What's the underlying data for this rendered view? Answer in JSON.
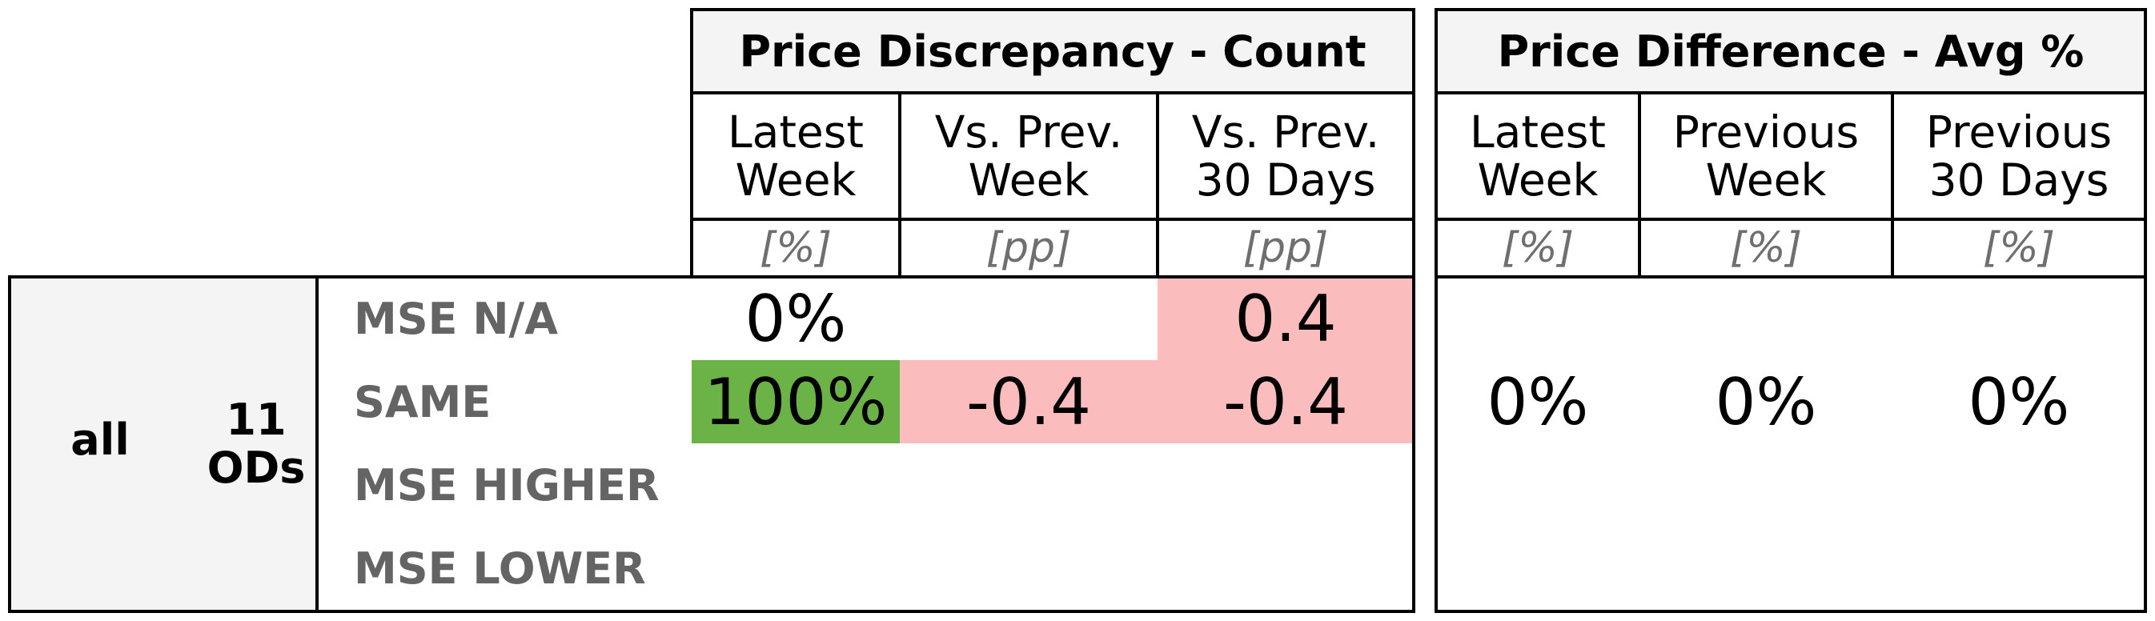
{
  "chart_data": {
    "type": "table",
    "groups": [
      {
        "title": "Price Discrepancy - Count",
        "columns": [
          {
            "label": "Latest\nWeek",
            "unit": "[%]"
          },
          {
            "label": "Vs. Prev.\nWeek",
            "unit": "[pp]"
          },
          {
            "label": "Vs. Prev.\n30 Days",
            "unit": "[pp]"
          }
        ]
      },
      {
        "title": "Price Difference - Avg %",
        "columns": [
          {
            "label": "Latest\nWeek",
            "unit": "[%]"
          },
          {
            "label": "Previous\nWeek",
            "unit": "[%]"
          },
          {
            "label": "Previous\n30 Days",
            "unit": "[%]"
          }
        ]
      }
    ],
    "segment": {
      "name": "all",
      "count_label": "11\nODs"
    },
    "rows": [
      {
        "label": "MSE N/A",
        "count": [
          "0%",
          "",
          "0.4"
        ]
      },
      {
        "label": "SAME",
        "count": [
          "100%",
          "-0.4",
          "-0.4"
        ]
      },
      {
        "label": "MSE HIGHER",
        "count": [
          "",
          "",
          ""
        ]
      },
      {
        "label": "MSE LOWER",
        "count": [
          "",
          "",
          ""
        ]
      }
    ],
    "avg_diff": [
      "0%",
      "0%",
      "0%"
    ],
    "colors": {
      "positive_fill": "#6cb347",
      "negative_fill": "#fbbcbd",
      "label_grey": "#646464",
      "unit_grey": "#6f6f6f",
      "panel_bg": "#f4f4f4"
    }
  }
}
